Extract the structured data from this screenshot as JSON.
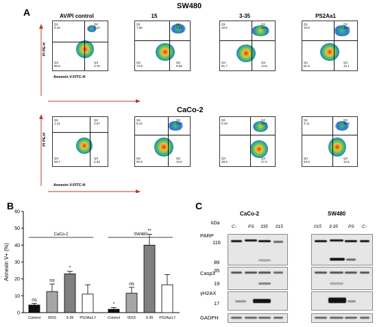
{
  "panelA": {
    "letter": "A",
    "rows": [
      {
        "title": "SW480",
        "plots": [
          {
            "col_label": "AV/PI control",
            "q1": "5.16",
            "q2": "2.10",
            "q3": "3.76",
            "q4": "90.8"
          },
          {
            "col_label": "15",
            "q1": "7.66",
            "q2": "7.67",
            "q3": "9.66",
            "q4": "74.8"
          },
          {
            "col_label": "3-35",
            "q1": "10.5",
            "q2": "23.6",
            "q3": "14.8",
            "q4": "51.7"
          },
          {
            "col_label": "PS2Aa1",
            "q1": "10.8",
            "q2": "15.3",
            "q3": "12.1",
            "q4": "61.9"
          }
        ]
      },
      {
        "title": "CaCo-2",
        "plots": [
          {
            "col_label": "",
            "q1": "1.41",
            "q2": "2.57",
            "q3": "2.33",
            "q4": "93.7"
          },
          {
            "col_label": "",
            "q1": "5.12",
            "q2": "13.3",
            "q3": "10.6",
            "q4": "50.9"
          },
          {
            "col_label": "",
            "q1": "5.43",
            "q2": "18.7",
            "q3": "47.3",
            "q4": "28.6"
          },
          {
            "col_label": "",
            "q1": "4.11",
            "q2": "16.8",
            "q3": "12.5",
            "q4": "64.6"
          }
        ]
      }
    ],
    "y_axis_label": "PI PE-H",
    "x_axis_label": "Annexin V-FITC-H"
  },
  "panelB": {
    "letter": "B",
    "chart_data": {
      "type": "bar",
      "ylabel": "Annexin V+ (%)",
      "ylim": [
        0,
        60
      ],
      "yticks": [
        0,
        10,
        20,
        30,
        40,
        50,
        60
      ],
      "groups": [
        {
          "name": "CaCo-2",
          "bars": [
            {
              "label": "Control",
              "value": 4.5,
              "err": 1.0,
              "sig": "ns",
              "color": "#111111"
            },
            {
              "label": "0015",
              "value": 12.5,
              "err": 4.5,
              "sig": "ns",
              "color": "#a6a6a6"
            },
            {
              "label": "3-35",
              "value": 23,
              "err": 1.5,
              "sig": "*",
              "color": "#7f7f7f"
            },
            {
              "label": "PS2Aa1.f",
              "value": 11,
              "err": 5.5,
              "sig": "",
              "color": "#ffffff"
            }
          ]
        },
        {
          "name": "SW480",
          "bars": [
            {
              "label": "Control",
              "value": 2,
              "err": 1.0,
              "sig": "*",
              "color": "#111111"
            },
            {
              "label": "0015",
              "value": 11.5,
              "err": 3.5,
              "sig": "ns",
              "color": "#a6a6a6"
            },
            {
              "label": "3-35",
              "value": 40,
              "err": 6.5,
              "sig": "**",
              "color": "#7f7f7f"
            },
            {
              "label": "PS2Aa1.f",
              "value": 16.5,
              "err": 6.0,
              "sig": "",
              "color": "#ffffff"
            }
          ]
        }
      ]
    }
  },
  "panelC": {
    "letter": "C",
    "kda_label": "kDa",
    "cell_lines": [
      "CaCo-2",
      "SW480"
    ],
    "lanes_left": [
      "C-",
      "PS",
      "335",
      "015"
    ],
    "lanes_right": [
      "015",
      "3-35",
      "PS",
      "C-"
    ],
    "proteins": [
      {
        "name": "PARP",
        "markers": [
          "116",
          "89"
        ]
      },
      {
        "name": "Casp3",
        "markers": [
          "35",
          "19"
        ]
      },
      {
        "name": "γH2AX",
        "markers": [
          "17"
        ]
      },
      {
        "name": "GADPH",
        "markers": []
      }
    ]
  }
}
